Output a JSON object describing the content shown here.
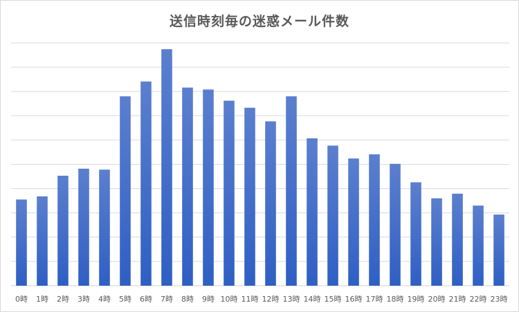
{
  "chart_data": {
    "type": "bar",
    "title": "送信時刻毎の迷惑メール件数",
    "xlabel": "",
    "ylabel": "",
    "categories": [
      "0時",
      "1時",
      "2時",
      "3時",
      "4時",
      "5時",
      "6時",
      "7時",
      "8時",
      "9時",
      "10時",
      "11時",
      "12時",
      "13時",
      "14時",
      "15時",
      "16時",
      "17時",
      "18時",
      "19時",
      "20時",
      "21時",
      "22時",
      "23時"
    ],
    "values": [
      35.5,
      36.8,
      45.3,
      48.2,
      47.8,
      78.0,
      84.1,
      97.4,
      81.6,
      80.8,
      76.2,
      73.3,
      67.7,
      78.0,
      60.7,
      57.7,
      52.4,
      54.1,
      50.2,
      42.6,
      36.0,
      37.9,
      33.0,
      29.3
    ],
    "ylim": [
      0,
      100
    ],
    "grid": true,
    "legend": "none",
    "bar_color_top": "#5b7fce",
    "bar_color_bottom": "#2f5fc4",
    "gridline_color": "#d9d9d9"
  }
}
